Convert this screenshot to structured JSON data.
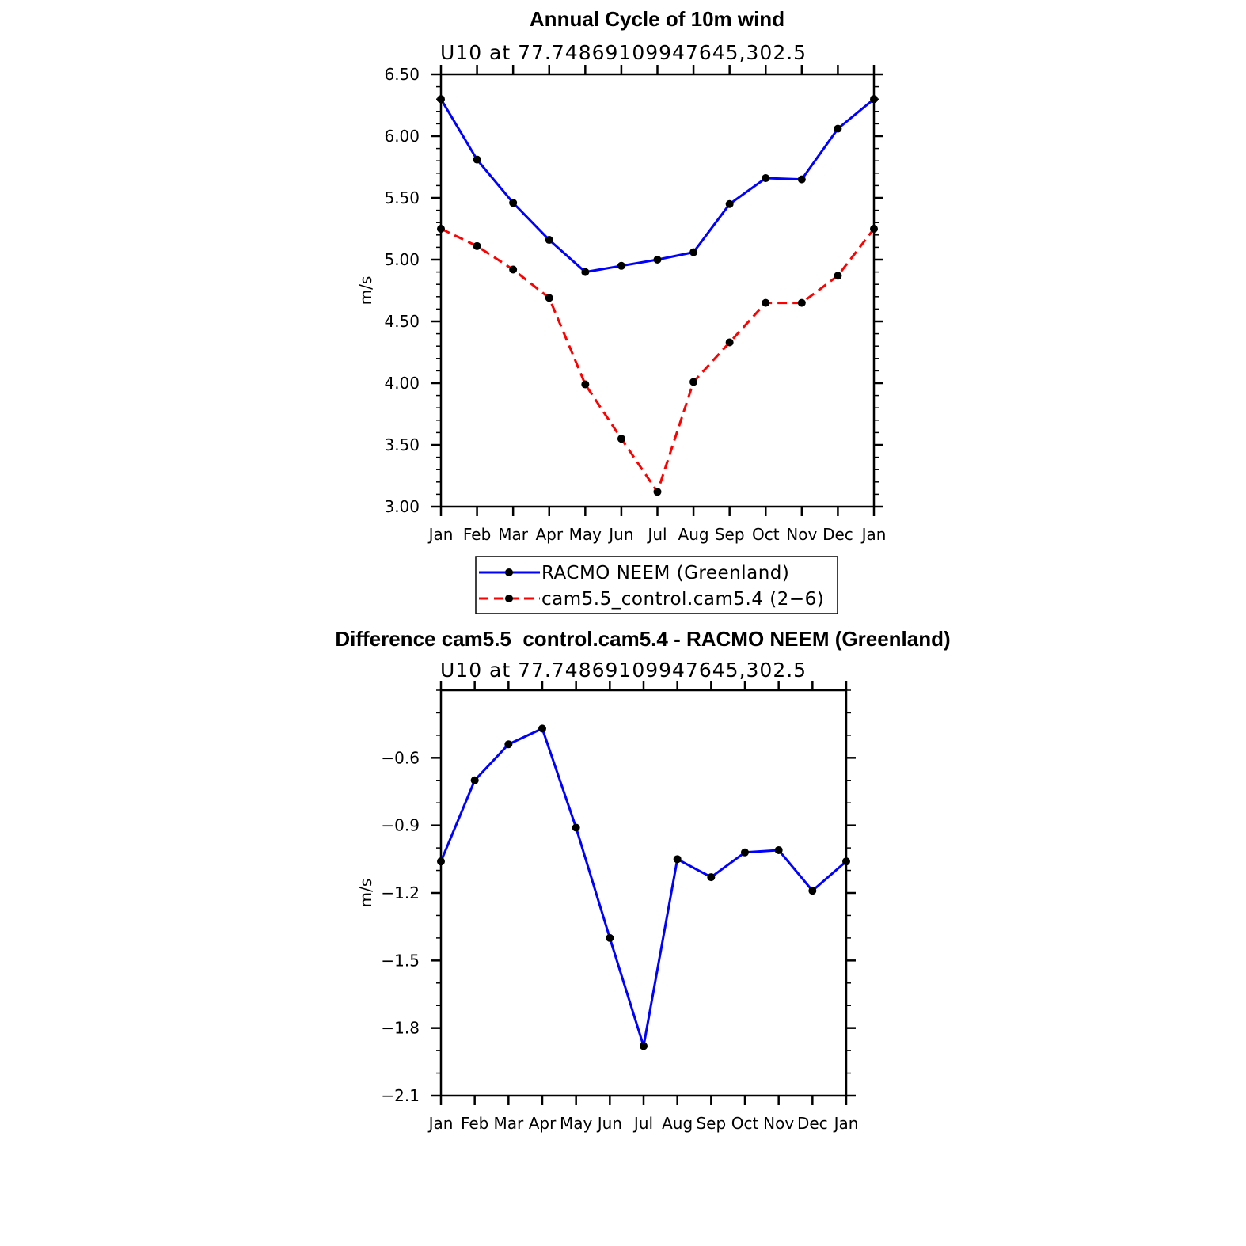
{
  "chart_data": [
    {
      "type": "line",
      "title": "Annual Cycle of 10m wind",
      "subtitle": "U10  at  77.74869109947645,302.5",
      "xlabel": "",
      "ylabel": "m/s",
      "categories": [
        "Jan",
        "Feb",
        "Mar",
        "Apr",
        "May",
        "Jun",
        "Jul",
        "Aug",
        "Sep",
        "Oct",
        "Nov",
        "Dec",
        "Jan"
      ],
      "ylim": [
        3.0,
        6.5
      ],
      "yticks": [
        3.0,
        3.5,
        4.0,
        4.5,
        5.0,
        5.5,
        6.0,
        6.5
      ],
      "ytick_labels": [
        "3.00",
        "3.50",
        "4.00",
        "4.50",
        "5.00",
        "5.50",
        "6.00",
        "6.50"
      ],
      "series": [
        {
          "name": "RACMO NEEM (Greenland)",
          "color": "#0000ff",
          "dash": "solid",
          "values": [
            6.3,
            5.81,
            5.46,
            5.16,
            4.9,
            4.95,
            5.0,
            5.06,
            5.45,
            5.66,
            5.65,
            6.06,
            6.3
          ]
        },
        {
          "name": "cam5.5_control.cam5.4 (2−6)",
          "color": "#ff0000",
          "dash": "dashed",
          "values": [
            5.25,
            5.11,
            4.92,
            4.69,
            3.99,
            3.55,
            3.12,
            4.01,
            4.33,
            4.65,
            4.65,
            4.87,
            5.25
          ]
        }
      ],
      "legend": [
        "RACMO NEEM (Greenland)",
        "cam5.5_control.cam5.4 (2−6)"
      ],
      "legend_position": "bottom"
    },
    {
      "type": "line",
      "title": "Difference cam5.5_control.cam5.4 - RACMO NEEM (Greenland)",
      "subtitle": "U10  at  77.74869109947645,302.5",
      "xlabel": "",
      "ylabel": "m/s",
      "categories": [
        "Jan",
        "Feb",
        "Mar",
        "Apr",
        "May",
        "Jun",
        "Jul",
        "Aug",
        "Sep",
        "Oct",
        "Nov",
        "Dec",
        "Jan"
      ],
      "ylim": [
        -2.1,
        -0.3
      ],
      "yticks": [
        -2.1,
        -1.8,
        -1.5,
        -1.2,
        -0.9,
        -0.6
      ],
      "ytick_labels": [
        "−2.1",
        "−1.8",
        "−1.5",
        "−1.2",
        "−0.9",
        "−0.6"
      ],
      "series": [
        {
          "name": "Difference",
          "color": "#0000ff",
          "dash": "solid",
          "values": [
            -1.06,
            -0.7,
            -0.54,
            -0.47,
            -0.91,
            -1.4,
            -1.88,
            -1.05,
            -1.13,
            -1.02,
            -1.01,
            -1.19,
            -1.06
          ]
        }
      ]
    }
  ]
}
